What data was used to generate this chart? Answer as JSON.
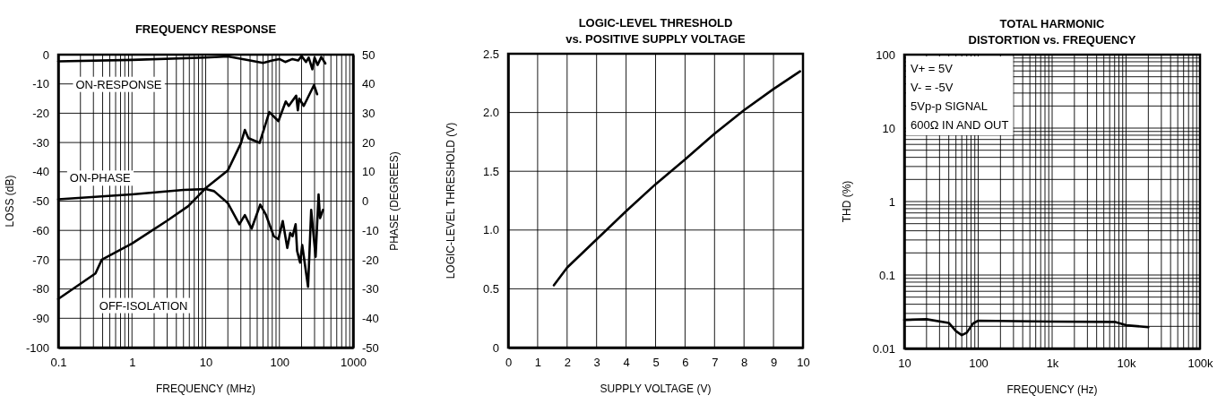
{
  "chart_data": [
    {
      "type": "line",
      "title": "FREQUENCY RESPONSE",
      "xlabel": "FREQUENCY (MHz)",
      "ylabel": "LOSS (dB)",
      "y2label": "PHASE (DEGREES)",
      "log": "x",
      "grid": true,
      "marker": "none",
      "line_style": "solid",
      "xlim": [
        0.1,
        1000
      ],
      "xticks": [
        0.1,
        1,
        10,
        100,
        1000
      ],
      "ylim": [
        -100,
        0
      ],
      "yticks": [
        -100,
        -90,
        -80,
        -70,
        -60,
        -50,
        -40,
        -30,
        -20,
        -10,
        0
      ],
      "y2lim": [
        -50,
        50
      ],
      "y2ticks": [
        -50,
        -40,
        -30,
        -20,
        -10,
        0,
        10,
        20,
        30,
        40,
        50
      ],
      "series": [
        {
          "name": "ON-RESPONSE",
          "color": "#000000",
          "x": [
            0.1,
            1,
            10,
            20,
            40,
            60,
            80,
            100,
            120,
            150,
            180,
            200,
            230,
            250,
            280,
            300,
            330,
            370,
            420
          ],
          "values": [
            -2.3,
            -1.8,
            -1,
            -0.6,
            -2,
            -2.8,
            -2,
            -1.5,
            -2.5,
            -1.5,
            -2,
            -0.5,
            -2.5,
            -1,
            -5,
            -1,
            -3.5,
            -0.8,
            -3
          ]
        },
        {
          "name": "ON-PHASE",
          "color": "#000000",
          "axis": "y2",
          "x": [
            0.1,
            1,
            5,
            10,
            13,
            20,
            28.6,
            34,
            42,
            55,
            66,
            84,
            97,
            111,
            128,
            140,
            151,
            166,
            174,
            191,
            204,
            245,
            270,
            310,
            340,
            356,
            390
          ],
          "values": [
            0.6,
            2.3,
            3.8,
            4.1,
            3.4,
            -0.7,
            -7.9,
            -4.8,
            -9.4,
            -1.2,
            -4.8,
            -12,
            -13,
            -6.8,
            -16,
            -10.9,
            -12,
            -7.9,
            -17,
            -21,
            -15,
            -29.3,
            -3,
            -19,
            2.3,
            -5.8,
            -3
          ]
        },
        {
          "name": "OFF-ISOLATION",
          "color": "#000000",
          "x": [
            0.1,
            0.32,
            0.39,
            1,
            2.95,
            5.8,
            10,
            20,
            30,
            34,
            38,
            54,
            73,
            97,
            122,
            134,
            169,
            178,
            186,
            214,
            295,
            325
          ],
          "values": [
            -83.4,
            -74.7,
            -70,
            -64.5,
            -56.8,
            -51.7,
            -45.6,
            -39.5,
            -30.3,
            -25.7,
            -28.5,
            -30.1,
            -19.6,
            -22.7,
            -16,
            -17.5,
            -14,
            -19,
            -15,
            -17.5,
            -10.4,
            -13.5
          ]
        }
      ]
    },
    {
      "type": "line",
      "title": "LOGIC-LEVEL THRESHOLD\nvs. POSITIVE SUPPLY VOLTAGE",
      "xlabel": "SUPPLY VOLTAGE (V)",
      "ylabel": "LOGIC-LEVEL THRESHOLD (V)",
      "grid": true,
      "marker": "none",
      "line_style": "solid",
      "xlim": [
        0,
        10
      ],
      "xticks": [
        0,
        1,
        2,
        3,
        4,
        5,
        6,
        7,
        8,
        9,
        10
      ],
      "ylim": [
        0,
        2.5
      ],
      "yticks": [
        0,
        0.5,
        {
          "value": 1,
          "label": "1.0"
        },
        1.5,
        {
          "value": 2,
          "label": "2.0"
        },
        2.5
      ],
      "series": [
        {
          "color": "#000000",
          "x": [
            1.55,
            2,
            3,
            4,
            5,
            6,
            7,
            8,
            9,
            9.9
          ],
          "values": [
            0.53,
            0.68,
            0.92,
            1.16,
            1.39,
            1.6,
            1.82,
            2.02,
            2.2,
            2.35
          ]
        }
      ]
    },
    {
      "type": "line",
      "title": "TOTAL HARMONIC\nDISTORTION vs. FREQUENCY",
      "xlabel": "FREQUENCY (Hz)",
      "ylabel": "THD (%)",
      "log": "xy",
      "grid": true,
      "marker": "none",
      "line_style": "solid",
      "xlim": [
        10,
        100000
      ],
      "xticks": [
        10,
        100,
        {
          "value": 1000,
          "label": "1k"
        },
        {
          "value": 10000,
          "label": "10k"
        },
        {
          "value": 100000,
          "label": "100k"
        }
      ],
      "ylim": [
        0.01,
        100
      ],
      "yticks": [
        0.01,
        0.1,
        1,
        10,
        100
      ],
      "annotations": [
        "V+ = 5V",
        "V- = -5V",
        "5Vp-p SIGNAL",
        "600Ω  IN AND OUT"
      ],
      "series": [
        {
          "color": "#000000",
          "x": [
            10,
            20,
            40,
            50,
            60,
            70,
            85,
            100,
            1000,
            7000,
            10000,
            20000
          ],
          "values": [
            0.0245,
            0.025,
            0.0223,
            0.0172,
            0.0152,
            0.0164,
            0.0218,
            0.0239,
            0.0232,
            0.023,
            0.0207,
            0.0195
          ]
        }
      ]
    }
  ]
}
